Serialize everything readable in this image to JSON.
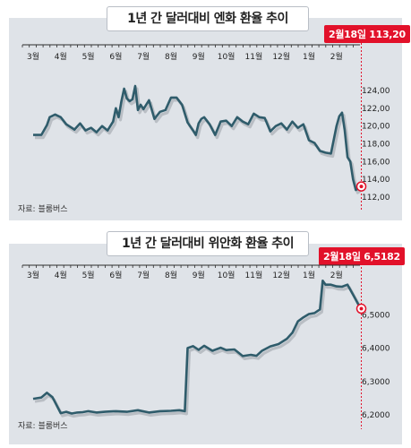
{
  "chart_data": [
    {
      "type": "line",
      "title": "1년 간 달러대비 엔화 환율 추이",
      "source": "자료: 블룸버스",
      "annotation": "2월18일 113,20",
      "categories": [
        "3월",
        "4월",
        "5월",
        "6월",
        "7월",
        "8월",
        "9월",
        "10월",
        "11월",
        "12월",
        "1월",
        "2월"
      ],
      "y_ticks": [
        "124,00",
        "122,00",
        "120,00",
        "118,00",
        "116,00",
        "114,00",
        "112,00"
      ],
      "ylim": [
        112,
        124
      ],
      "series": [
        {
          "x": [
            0,
            0.3,
            0.5,
            0.6,
            0.8,
            1.0,
            1.2,
            1.5,
            1.7,
            1.9,
            2.1,
            2.3,
            2.5,
            2.7,
            2.9,
            3.0,
            3.1,
            3.2,
            3.3,
            3.4,
            3.5,
            3.6,
            3.7,
            3.8,
            3.9,
            4.0,
            4.2,
            4.4,
            4.6,
            4.8,
            5.0,
            5.2,
            5.4,
            5.6,
            5.8,
            5.9,
            6.0,
            6.1,
            6.2,
            6.4,
            6.6,
            6.8,
            7.0,
            7.2,
            7.4,
            7.6,
            7.8,
            8.0,
            8.2,
            8.4,
            8.6,
            8.8,
            9.0,
            9.2,
            9.4,
            9.6,
            9.8,
            10.0,
            10.2,
            10.4,
            10.6,
            10.8,
            11.0,
            11.1,
            11.2,
            11.3,
            11.4,
            11.5,
            11.6,
            11.7,
            11.8,
            11.9
          ],
          "y": [
            119.0,
            119.0,
            120.1,
            121.0,
            121.3,
            121.0,
            120.2,
            119.6,
            120.3,
            119.5,
            119.8,
            119.3,
            120.0,
            119.5,
            120.5,
            122.0,
            121.0,
            122.8,
            124.2,
            123.1,
            122.8,
            123.0,
            124.5,
            121.8,
            122.4,
            121.9,
            122.9,
            120.8,
            121.6,
            121.8,
            123.2,
            123.2,
            122.4,
            120.4,
            119.5,
            119.0,
            120.3,
            120.8,
            121.0,
            120.2,
            119.0,
            120.5,
            120.6,
            120.0,
            121.0,
            120.5,
            120.2,
            121.4,
            121.0,
            120.9,
            119.4,
            120.0,
            120.3,
            119.6,
            120.5,
            119.8,
            120.2,
            118.4,
            118.1,
            117.2,
            117.0,
            116.9,
            120.0,
            121.1,
            121.5,
            119.5,
            116.5,
            116.0,
            114.0,
            112.8,
            113.0,
            113.2
          ]
        }
      ]
    },
    {
      "type": "line",
      "title": "1년 간 달러대비 위안화 환율 추이",
      "source": "자료: 블룸버스",
      "annotation": "2월18일 6,5182",
      "categories": [
        "3월",
        "4월",
        "5월",
        "6월",
        "7월",
        "8월",
        "9월",
        "10월",
        "11월",
        "12월",
        "1월",
        "2월"
      ],
      "y_ticks": [
        "6,5000",
        "6,4000",
        "6,3000",
        "6,2000"
      ],
      "ylim": [
        6.2,
        6.6
      ],
      "series": [
        {
          "x": [
            0,
            0.3,
            0.5,
            0.7,
            1.0,
            1.2,
            1.4,
            1.6,
            1.8,
            2.0,
            2.3,
            2.6,
            3.0,
            3.4,
            3.8,
            4.2,
            4.6,
            5.0,
            5.3,
            5.5,
            5.6,
            5.8,
            6.0,
            6.2,
            6.5,
            6.8,
            7.0,
            7.3,
            7.6,
            7.9,
            8.1,
            8.3,
            8.6,
            8.9,
            9.2,
            9.4,
            9.6,
            9.8,
            10.0,
            10.2,
            10.4,
            10.5,
            10.6,
            10.8,
            11.0,
            11.2,
            11.4,
            11.6,
            11.8,
            11.9
          ],
          "y": [
            6.248,
            6.252,
            6.266,
            6.253,
            6.205,
            6.209,
            6.204,
            6.207,
            6.208,
            6.211,
            6.207,
            6.209,
            6.211,
            6.209,
            6.214,
            6.207,
            6.211,
            6.212,
            6.214,
            6.211,
            6.4,
            6.406,
            6.395,
            6.407,
            6.392,
            6.401,
            6.394,
            6.396,
            6.376,
            6.38,
            6.377,
            6.392,
            6.405,
            6.412,
            6.428,
            6.446,
            6.48,
            6.492,
            6.502,
            6.505,
            6.516,
            6.602,
            6.59,
            6.59,
            6.585,
            6.584,
            6.59,
            6.56,
            6.53,
            6.518
          ]
        }
      ]
    }
  ]
}
